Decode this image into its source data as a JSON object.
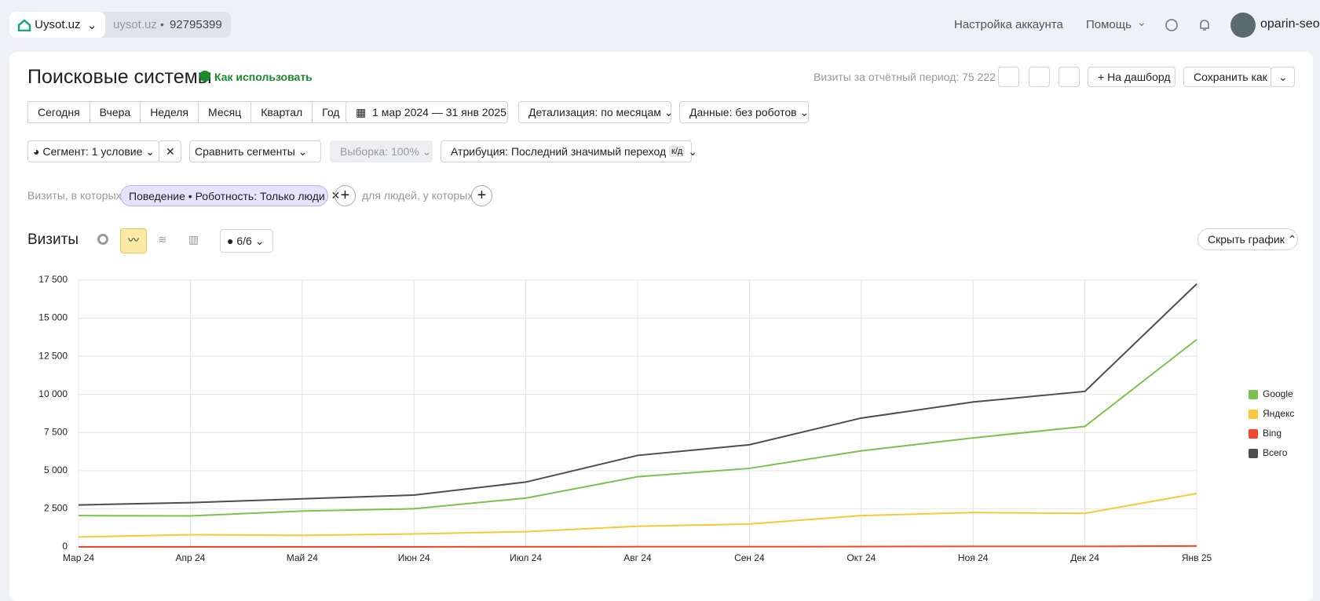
{
  "header": {
    "site": "Uysot.uz",
    "domain": "uysot.uz",
    "counter": "92795399",
    "account_settings": "Настройка аккаунта",
    "help": "Помощь",
    "user": "oparin-seo"
  },
  "report": {
    "title": "Поисковые системы",
    "how_to": "Как использовать",
    "visits_total": "Визиты за отчётный период: 75 222",
    "to_dashboard": "На дашборд",
    "save_as": "Сохранить как"
  },
  "periods": [
    "Сегодня",
    "Вчера",
    "Неделя",
    "Месяц",
    "Квартал",
    "Год"
  ],
  "date_range": "1 мар 2024 — 31 янв 2025",
  "detail": "Детализация: по месяцам",
  "data_filter": "Данные: без роботов",
  "segment": "Сегмент: 1 условие",
  "compare": "Сравнить сегменты",
  "sample": "Выборка: 100%",
  "attribution": "Атрибуция: Последний значимый переход",
  "attribution_badge": "к/д",
  "filter_prefix": "Визиты, в которых",
  "filter_tag": "Поведение • Роботность: Только люди",
  "people": "для людей, у которых",
  "series_count": "6/6",
  "hide_chart": "Скрыть график",
  "chart_data": {
    "type": "line",
    "title": "Визиты",
    "x": [
      "Мар 24",
      "Апр 24",
      "Май 24",
      "Июн 24",
      "Июл 24",
      "Авг 24",
      "Сен 24",
      "Окт 24",
      "Ноя 24",
      "Дек 24",
      "Янв 25"
    ],
    "series": [
      {
        "name": "Google",
        "color": "#7cc14d",
        "values": [
          2050,
          2030,
          2350,
          2500,
          3200,
          4600,
          5150,
          6300,
          7150,
          7900,
          13600
        ]
      },
      {
        "name": "Яндекс",
        "color": "#f8c73a",
        "values": [
          650,
          800,
          750,
          850,
          1000,
          1350,
          1500,
          2050,
          2250,
          2200,
          3500
        ]
      },
      {
        "name": "Bing",
        "color": "#f04a2e",
        "values": [
          0,
          0,
          0,
          0,
          5,
          10,
          10,
          20,
          30,
          30,
          60
        ]
      },
      {
        "name": "Всего",
        "color": "#4d4d4d",
        "values": [
          2750,
          2900,
          3150,
          3400,
          4250,
          6000,
          6700,
          8450,
          9500,
          10200,
          17250
        ]
      }
    ],
    "ylim": [
      0,
      17500
    ],
    "yticks": [
      0,
      {
        "value": 2500,
        "label": "2 500"
      },
      {
        "value": 5000,
        "label": "5 000"
      },
      {
        "value": 7500,
        "label": "7 500"
      },
      {
        "value": 10000,
        "label": "10 000"
      },
      {
        "value": 12500,
        "label": "12 500"
      },
      {
        "value": 15000,
        "label": "15 000"
      },
      {
        "value": 17500,
        "label": "17 500"
      }
    ],
    "grid": true,
    "legend": "right"
  }
}
